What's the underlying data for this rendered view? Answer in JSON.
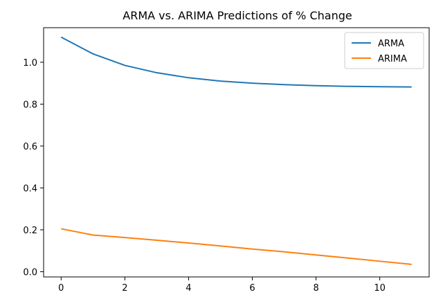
{
  "chart_data": {
    "type": "line",
    "title": "ARMA vs. ARIMA Predictions of % Change",
    "xlabel": "",
    "ylabel": "",
    "xlim": [
      -0.55,
      11.55
    ],
    "ylim": [
      -0.025,
      1.165
    ],
    "x_ticks": [
      0,
      2,
      4,
      6,
      8,
      10
    ],
    "x_tick_labels": [
      "0",
      "2",
      "4",
      "6",
      "8",
      "10"
    ],
    "y_ticks": [
      0.0,
      0.2,
      0.4,
      0.6,
      0.8,
      1.0
    ],
    "y_tick_labels": [
      "0.0",
      "0.2",
      "0.4",
      "0.6",
      "0.8",
      "1.0"
    ],
    "grid": false,
    "legend_position": "top-right",
    "x": [
      0,
      1,
      2,
      3,
      4,
      5,
      6,
      7,
      8,
      9,
      10,
      11
    ],
    "series": [
      {
        "name": "ARMA",
        "color": "#1f77b4",
        "values": [
          1.12,
          1.04,
          0.985,
          0.95,
          0.926,
          0.91,
          0.9,
          0.893,
          0.888,
          0.885,
          0.883,
          0.882
        ]
      },
      {
        "name": "ARIMA",
        "color": "#ff7f0e",
        "values": [
          0.205,
          0.175,
          0.163,
          0.15,
          0.137,
          0.123,
          0.108,
          0.095,
          0.08,
          0.065,
          0.05,
          0.035
        ]
      }
    ]
  }
}
